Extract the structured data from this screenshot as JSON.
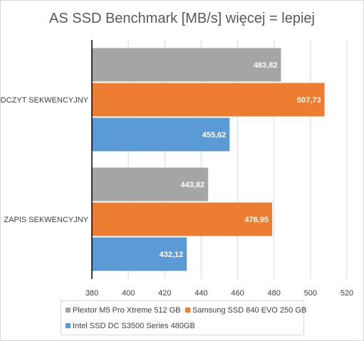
{
  "chart_data": {
    "type": "bar",
    "orientation": "horizontal",
    "title": "AS SSD Benchmark [MB/s] więcej = lepiej",
    "categories": [
      "ODCZYT SEKWENCYJNY",
      "ZAPIS SEKWENCYJNY"
    ],
    "series": [
      {
        "name": "Plextor M5 Pro Xtreme 512 GB",
        "color": "#a5a5a5",
        "values": [
          483.82,
          443.82
        ],
        "labels": [
          "483,82",
          "443,82"
        ]
      },
      {
        "name": "Samsung SSD 840 EVO 250 GB",
        "color": "#ed7d31",
        "values": [
          507.73,
          478.95
        ],
        "labels": [
          "507,73",
          "478,95"
        ]
      },
      {
        "name": "Intel SSD DC S3500 Series 480GB",
        "color": "#5b9bd5",
        "values": [
          455.62,
          432.12
        ],
        "labels": [
          "455,62",
          "432,12"
        ]
      }
    ],
    "xlim": [
      380,
      520
    ],
    "xticks": [
      "380",
      "400",
      "420",
      "440",
      "460",
      "480",
      "500",
      "520"
    ],
    "grid": true,
    "legend_position": "bottom",
    "xlabel": "",
    "ylabel": ""
  }
}
